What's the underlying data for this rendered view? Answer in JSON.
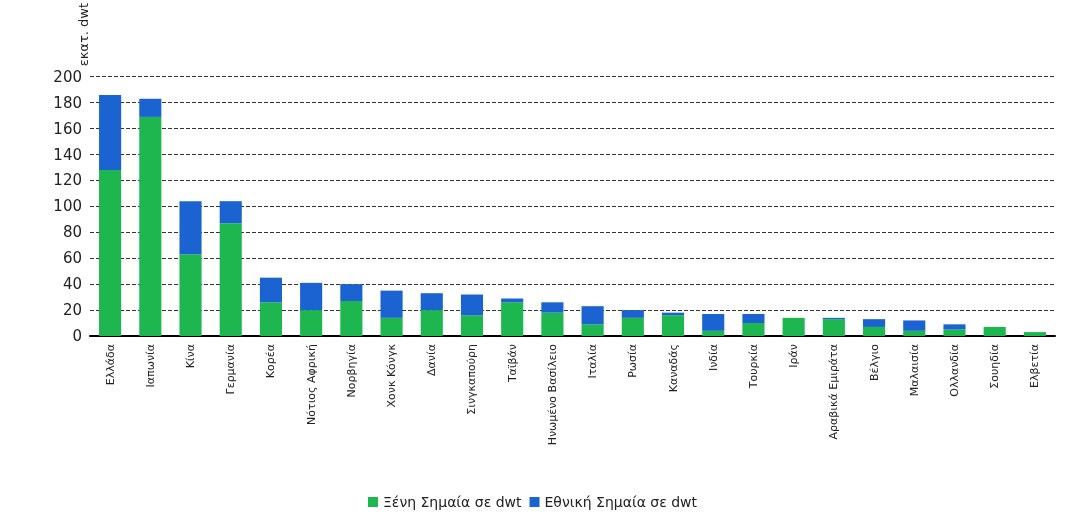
{
  "chart_data": {
    "type": "bar",
    "stacked": true,
    "ylabel": "εκατ. dwt",
    "categories": [
      "Ελλάδα",
      "Ιαπωνία",
      "Κίνα",
      "Γερμανία",
      "Κορέα",
      "Νότιος Αφρική",
      "Νορβηγία",
      "Χονκ Κόνγκ",
      "Δανία",
      "Σινγκαπούρη",
      "Ταϊβάν",
      "Ηνωμένο Βασίλειο",
      "Ιταλία",
      "Ρωσία",
      "Καναδάς",
      "Ινδία",
      "Τουρκία",
      "Ιράν",
      "Αραβικά Εμιράτα",
      "Βέλγιο",
      "Μαλαισία",
      "Ολλανδία",
      "Σουηδία",
      "Ελβετία"
    ],
    "series": [
      {
        "name": "Ξένη Σημαία σε dwt",
        "color": "#1db64f",
        "values": [
          128,
          169,
          63,
          87,
          26,
          20,
          27,
          14,
          20,
          16,
          26,
          18,
          9,
          14,
          16,
          4,
          10,
          14,
          13,
          7,
          4,
          5,
          7,
          3
        ]
      },
      {
        "name": "Εθνική Σημαία σε dwt",
        "color": "#1b63d0",
        "values": [
          58,
          14,
          41,
          17,
          19,
          21,
          13,
          21,
          13,
          16,
          3,
          8,
          14,
          6,
          2,
          13,
          7,
          0,
          1,
          6,
          8,
          4,
          0,
          0
        ]
      }
    ],
    "ylim": [
      0,
      200
    ],
    "yticks": [
      0,
      20,
      40,
      60,
      80,
      100,
      120,
      140,
      160,
      180,
      200
    ],
    "grid": "y",
    "legend": "bottom"
  }
}
